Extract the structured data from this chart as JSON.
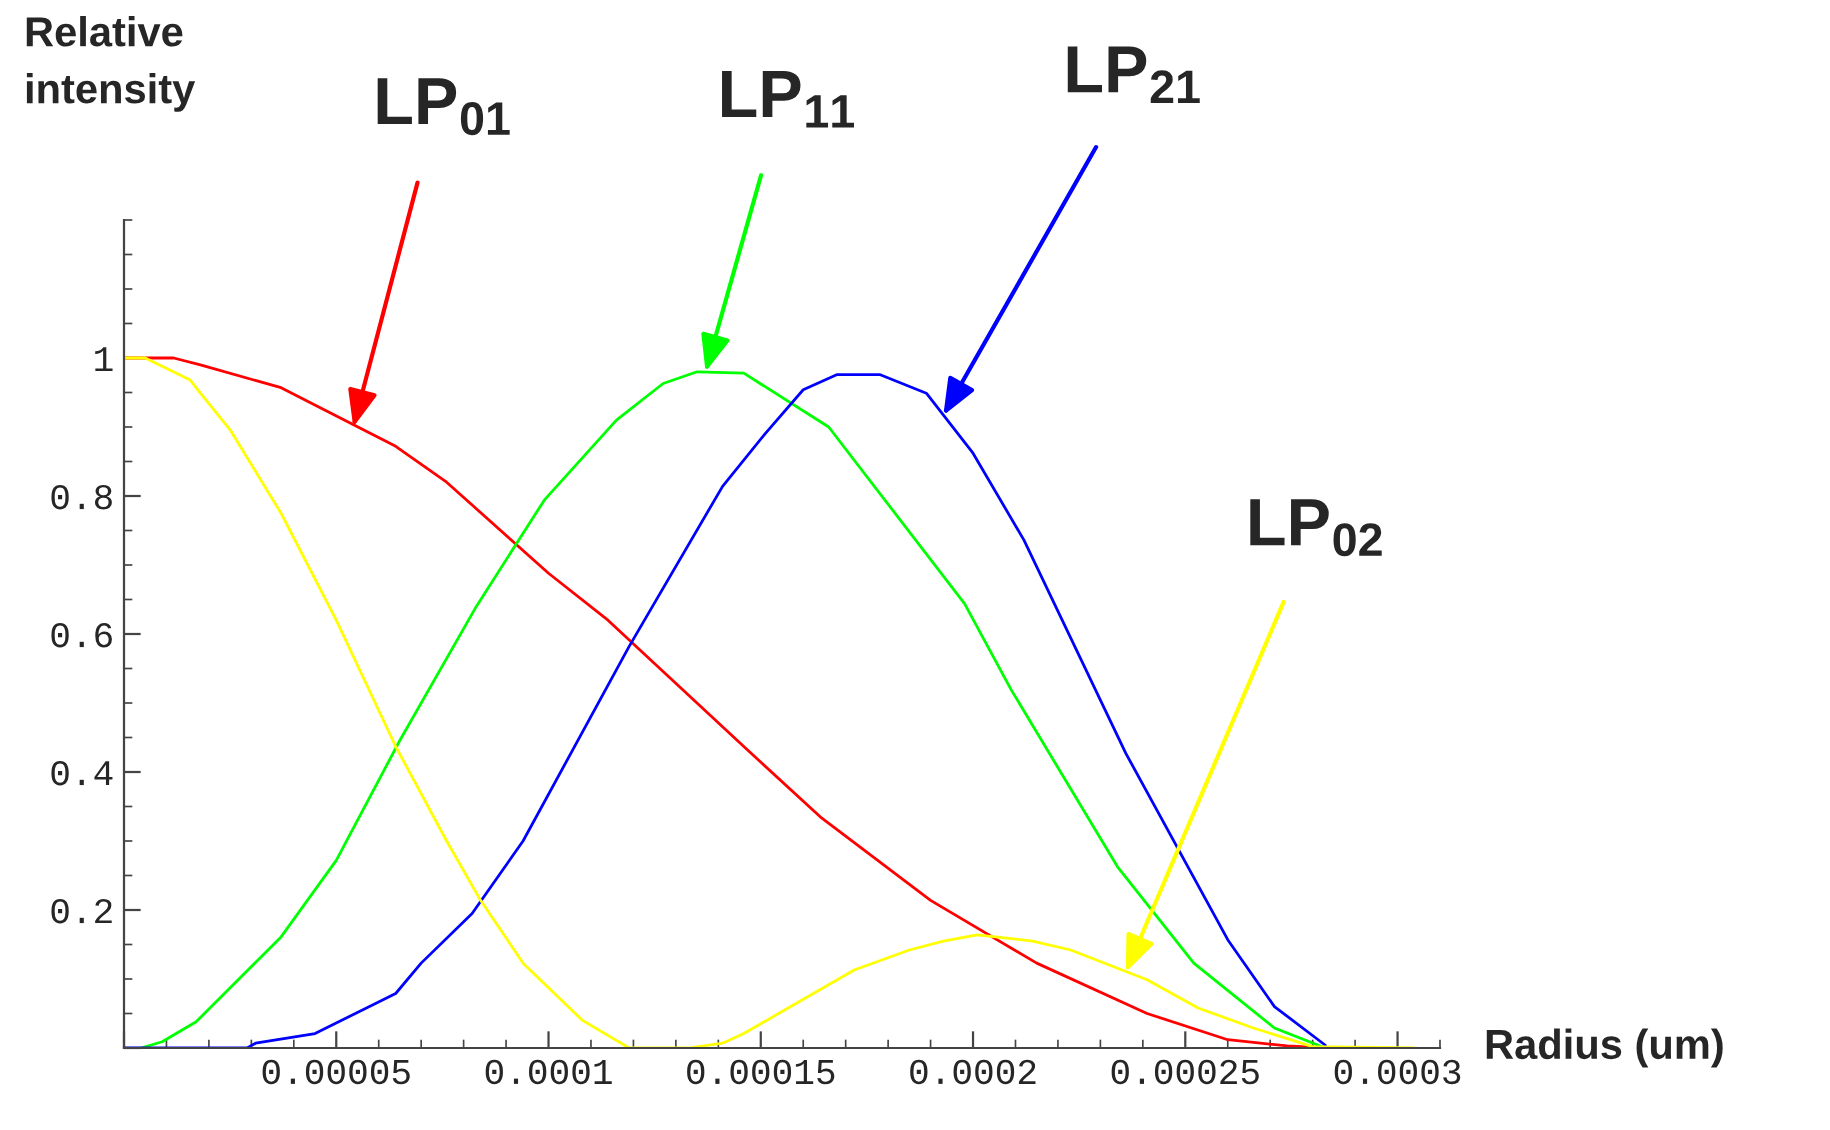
{
  "chart_data": {
    "type": "line",
    "xlabel": "Radius (um)",
    "ylabel": "Relative\nintensity",
    "xlim": [
      0,
      0.00031
    ],
    "ylim": [
      0,
      1.2
    ],
    "xticks": [
      {
        "value": 0,
        "label": null
      },
      {
        "value": 5e-05,
        "label": "0.00005"
      },
      0.0001,
      0.00015,
      0.0002,
      0.00025,
      0.0003
    ],
    "yticks": [
      {
        "value": 0,
        "label": null
      },
      0.2,
      0.4,
      0.6,
      0.8,
      1
    ],
    "grid": false,
    "marker": "none",
    "line_style": "solid",
    "series": [
      {
        "color": "#ff0000",
        "x": [
          0,
          1.17e-05,
          1.8e-05,
          3.7e-05,
          6.4e-05,
          7.6e-05,
          0.0001,
          0.000114,
          0.000146,
          0.000164,
          0.00019,
          0.000215,
          0.000241,
          0.00026,
          0.000274,
          0.000283
        ],
        "values": [
          1.0,
          1.0,
          0.99,
          0.957,
          0.872,
          0.82,
          0.688,
          0.62,
          0.437,
          0.335,
          0.214,
          0.123,
          0.05,
          0.012,
          0.003,
          0
        ]
      },
      {
        "color": "#00ff00",
        "x": [
          4e-06,
          9e-06,
          1.7e-05,
          3.7e-05,
          5e-05,
          6.5e-05,
          8.3e-05,
          9.9e-05,
          0.000116,
          0.000127,
          0.000135,
          0.000146,
          0.000166,
          0.000198,
          0.000209,
          0.000234,
          0.000252,
          0.000271,
          0.000283
        ],
        "values": [
          0,
          0.009,
          0.038,
          0.161,
          0.272,
          0.446,
          0.64,
          0.794,
          0.91,
          0.963,
          0.98,
          0.978,
          0.9,
          0.644,
          0.519,
          0.263,
          0.123,
          0.029,
          0
        ]
      },
      {
        "color": "#0000ff",
        "x": [
          0,
          2.9e-05,
          3.1e-05,
          4.5e-05,
          6.4e-05,
          7e-05,
          8.2e-05,
          9.4e-05,
          0.000119,
          0.000141,
          0.000151,
          0.00016,
          0.000168,
          0.000178,
          0.000189,
          0.0002,
          0.000212,
          0.000236,
          0.00026,
          0.000271,
          0.000283
        ],
        "values": [
          0,
          0,
          0.007,
          0.021,
          0.079,
          0.123,
          0.195,
          0.3,
          0.582,
          0.814,
          0.89,
          0.954,
          0.976,
          0.976,
          0.949,
          0.862,
          0.736,
          0.427,
          0.157,
          0.06,
          0.004
        ]
      },
      {
        "color": "#ffff00",
        "x": [
          0,
          5e-06,
          1.56e-05,
          1.8e-05,
          2.5e-05,
          3.7e-05,
          5e-05,
          6.4e-05,
          7.6e-05,
          8.4e-05,
          9.4e-05,
          0.000108,
          0.000119,
          0.000133,
          0.000141,
          0.000146,
          0.000172,
          0.000185,
          0.000193,
          0.000201,
          0.000214,
          0.000223,
          0.000241,
          0.000253,
          0.000266,
          0.00028,
          0.000304
        ],
        "values": [
          1.0,
          1.0,
          0.968,
          0.949,
          0.896,
          0.775,
          0.62,
          0.437,
          0.3,
          0.214,
          0.123,
          0.04,
          0,
          0,
          0.007,
          0.021,
          0.113,
          0.142,
          0.155,
          0.164,
          0.155,
          0.142,
          0.099,
          0.058,
          0.029,
          0.002,
          0
        ]
      }
    ],
    "annotations": [
      {
        "text": "LP$_{01}$",
        "x": 5.4e-05,
        "y": 0.9
      },
      {
        "text": "LP$_{11}$",
        "x": 0.000137,
        "y": 0.98
      },
      {
        "text": "LP$_{21}$",
        "x": 0.000193,
        "y": 0.917
      },
      {
        "text": "LP$_{02}$",
        "x": 0.000236,
        "y": 0.11
      }
    ]
  }
}
